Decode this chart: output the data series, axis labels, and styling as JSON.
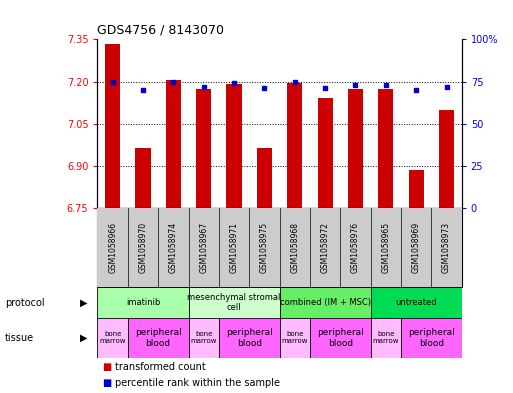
{
  "title": "GDS4756 / 8143070",
  "samples": [
    "GSM1058966",
    "GSM1058970",
    "GSM1058974",
    "GSM1058967",
    "GSM1058971",
    "GSM1058975",
    "GSM1058968",
    "GSM1058972",
    "GSM1058976",
    "GSM1058965",
    "GSM1058969",
    "GSM1058973"
  ],
  "bar_values": [
    7.335,
    6.965,
    7.205,
    7.175,
    7.19,
    6.965,
    7.195,
    7.14,
    7.175,
    7.175,
    6.885,
    7.1
  ],
  "dot_values": [
    75,
    70,
    75,
    72,
    74,
    71,
    75,
    71,
    73,
    73,
    70,
    72
  ],
  "ylim_left": [
    6.75,
    7.35
  ],
  "ylim_right": [
    0,
    100
  ],
  "yticks_left": [
    6.75,
    6.9,
    7.05,
    7.2,
    7.35
  ],
  "yticks_right": [
    0,
    25,
    50,
    75,
    100
  ],
  "bar_color": "#cc0000",
  "dot_color": "#0000cc",
  "protocols": [
    {
      "label": "imatinib",
      "start": 0,
      "end": 3,
      "color": "#aaffaa"
    },
    {
      "label": "mesenchymal stromal\ncell",
      "start": 3,
      "end": 6,
      "color": "#ccffcc"
    },
    {
      "label": "combined (IM + MSC)",
      "start": 6,
      "end": 9,
      "color": "#66ee66"
    },
    {
      "label": "untreated",
      "start": 9,
      "end": 12,
      "color": "#00dd55"
    }
  ],
  "tissues": [
    {
      "label": "bone\nmarrow",
      "start": 0,
      "end": 1,
      "color": "#ffbbff"
    },
    {
      "label": "peripheral\nblood",
      "start": 1,
      "end": 3,
      "color": "#ff66ff"
    },
    {
      "label": "bone\nmarrow",
      "start": 3,
      "end": 4,
      "color": "#ffbbff"
    },
    {
      "label": "peripheral\nblood",
      "start": 4,
      "end": 6,
      "color": "#ff66ff"
    },
    {
      "label": "bone\nmarrow",
      "start": 6,
      "end": 7,
      "color": "#ffbbff"
    },
    {
      "label": "peripheral\nblood",
      "start": 7,
      "end": 9,
      "color": "#ff66ff"
    },
    {
      "label": "bone\nmarrow",
      "start": 9,
      "end": 10,
      "color": "#ffbbff"
    },
    {
      "label": "peripheral\nblood",
      "start": 10,
      "end": 12,
      "color": "#ff66ff"
    }
  ],
  "legend_red": "transformed count",
  "legend_blue": "percentile rank within the sample",
  "sample_box_color": "#cccccc"
}
